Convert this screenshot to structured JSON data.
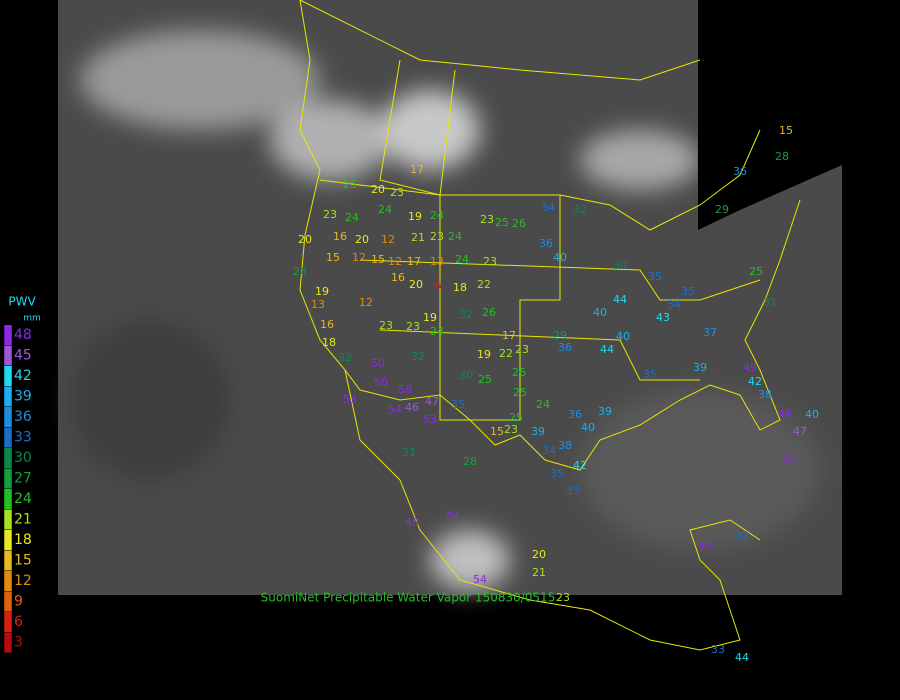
{
  "legend": {
    "title": "PWV",
    "unit": "mm",
    "levels": [
      {
        "value": 48,
        "color": "#8a2be2"
      },
      {
        "value": 45,
        "color": "#9b59d6"
      },
      {
        "value": 42,
        "color": "#22d8f0"
      },
      {
        "value": 39,
        "color": "#1ab0f0"
      },
      {
        "value": 36,
        "color": "#1e8ee0"
      },
      {
        "value": 33,
        "color": "#1c6fc8"
      },
      {
        "value": 30,
        "color": "#0a8a4a"
      },
      {
        "value": 27,
        "color": "#14a03c"
      },
      {
        "value": 24,
        "color": "#22c022"
      },
      {
        "value": 21,
        "color": "#a8e020"
      },
      {
        "value": 18,
        "color": "#e8e820"
      },
      {
        "value": 15,
        "color": "#e8b820"
      },
      {
        "value": 12,
        "color": "#e08a10"
      },
      {
        "value": 9,
        "color": "#e06010"
      },
      {
        "value": 6,
        "color": "#d82010"
      },
      {
        "value": 3,
        "color": "#b80c0c"
      }
    ]
  },
  "stations": [
    17,
    20,
    23,
    25,
    23,
    24,
    24,
    19,
    24,
    16,
    20,
    12,
    21,
    23,
    24,
    23,
    25,
    26,
    34,
    32,
    36,
    40,
    30,
    35,
    20,
    28,
    15,
    12,
    15,
    12,
    17,
    13,
    24,
    23,
    19,
    13,
    12,
    16,
    20,
    6,
    18,
    22,
    19,
    32,
    26,
    16,
    23,
    23,
    24,
    17,
    29,
    44,
    40,
    40,
    18,
    32,
    50,
    32,
    19,
    22,
    23,
    36,
    44,
    50,
    58,
    53,
    54,
    46,
    47,
    53,
    35,
    30,
    25,
    26,
    25,
    25,
    24,
    15,
    23,
    39,
    36,
    40,
    39,
    34,
    38,
    42,
    35,
    33,
    31,
    28,
    48,
    54,
    54,
    20,
    21,
    23,
    54,
    33,
    33,
    44,
    35,
    39,
    49,
    42,
    38,
    49,
    47,
    49,
    40,
    36,
    28,
    15,
    25,
    31,
    37,
    34,
    43,
    35,
    29
  ],
  "caption": "SuomiNet Precipitable Water Vapor 150830/0515"
}
